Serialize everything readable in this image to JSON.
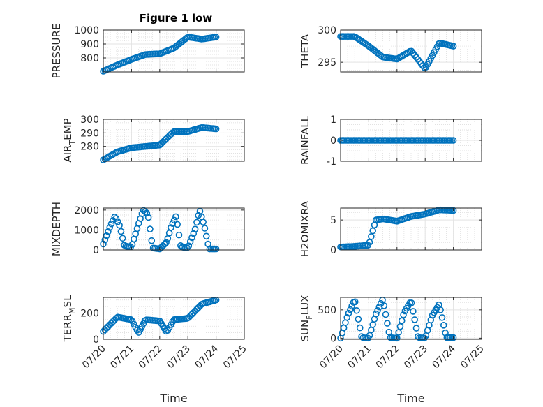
{
  "figure": {
    "title": "Figure 1 low",
    "marker_color": "#0072BD",
    "axis_color": "#262626",
    "grid_color": "#d9d9d9"
  },
  "chart_data": [
    {
      "id": "pressure",
      "type": "scatter",
      "title": "Figure 1 low",
      "ylabel": "PRESSURE",
      "xlabel": "",
      "ylim": [
        700,
        1000
      ],
      "yticks": [
        800,
        900,
        1000
      ],
      "xlim": [
        "07/20",
        "07/25"
      ],
      "grid": true,
      "minor_grid": true,
      "x": [
        "07/20 00:00",
        "07/20 12:00",
        "07/21 00:00",
        "07/21 12:00",
        "07/22 00:00",
        "07/22 12:00",
        "07/23 00:00",
        "07/23 12:00",
        "07/24 00:00"
      ],
      "y": [
        705,
        750,
        790,
        825,
        830,
        870,
        950,
        935,
        950
      ]
    },
    {
      "id": "theta",
      "type": "scatter",
      "title": "",
      "ylabel": "THETA",
      "xlabel": "",
      "ylim": [
        293.5,
        300
      ],
      "yticks": [
        295,
        300
      ],
      "xlim": [
        "07/20",
        "07/25"
      ],
      "grid": true,
      "minor_grid": true,
      "x": [
        "07/20 00:00",
        "07/20 12:00",
        "07/21 00:00",
        "07/21 12:00",
        "07/22 00:00",
        "07/22 12:00",
        "07/23 00:00",
        "07/23 12:00",
        "07/24 00:00"
      ],
      "y": [
        299.0,
        299.0,
        297.5,
        295.8,
        295.5,
        296.8,
        294.0,
        298.0,
        297.5
      ]
    },
    {
      "id": "air_temp",
      "type": "scatter",
      "title": "",
      "ylabel_main": "AIR",
      "ylabel_sub": "T",
      "ylabel_rest": "EMP",
      "xlabel": "",
      "ylim": [
        269,
        300
      ],
      "yticks": [
        280,
        290,
        300
      ],
      "xlim": [
        "07/20",
        "07/25"
      ],
      "grid": true,
      "minor_grid": true,
      "x": [
        "07/20 00:00",
        "07/20 12:00",
        "07/21 00:00",
        "07/21 12:00",
        "07/22 00:00",
        "07/22 12:00",
        "07/23 00:00",
        "07/23 12:00",
        "07/24 00:00"
      ],
      "y": [
        270,
        276,
        279,
        280,
        281,
        291,
        291,
        294,
        293
      ]
    },
    {
      "id": "rainfall",
      "type": "scatter",
      "title": "",
      "ylabel": "RAINFALL",
      "xlabel": "",
      "ylim": [
        -1,
        1
      ],
      "yticks": [
        -1,
        0,
        1
      ],
      "xlim": [
        "07/20",
        "07/25"
      ],
      "grid": true,
      "minor_grid": true,
      "x": [
        "07/20 00:00",
        "07/24 00:00"
      ],
      "y": [
        0,
        0
      ]
    },
    {
      "id": "mixdepth",
      "type": "scatter",
      "title": "",
      "ylabel": "MIXDEPTH",
      "xlabel": "",
      "ylim": [
        0,
        2100
      ],
      "yticks": [
        0,
        1000,
        2000
      ],
      "xlim": [
        "07/20",
        "07/25"
      ],
      "grid": true,
      "minor_grid": true,
      "x": [
        "07/20 00:00",
        "07/20 06:00",
        "07/20 10:00",
        "07/20 14:00",
        "07/20 18:00",
        "07/21 00:00",
        "07/21 06:00",
        "07/21 10:00",
        "07/21 14:00",
        "07/21 18:00",
        "07/22 00:00",
        "07/22 06:00",
        "07/22 10:00",
        "07/22 14:00",
        "07/22 18:00",
        "07/23 00:00",
        "07/23 06:00",
        "07/23 10:00",
        "07/23 14:00",
        "07/23 18:00",
        "07/24 00:00"
      ],
      "y": [
        300,
        1200,
        1700,
        1200,
        200,
        150,
        1300,
        2000,
        1800,
        100,
        50,
        400,
        1200,
        1700,
        150,
        100,
        1000,
        2000,
        1200,
        50,
        50
      ]
    },
    {
      "id": "h2omixra",
      "type": "scatter",
      "title": "",
      "ylabel": "H2OMIXRA",
      "xlabel": "",
      "ylim": [
        0,
        7
      ],
      "yticks": [
        0,
        5
      ],
      "xlim": [
        "07/20",
        "07/25"
      ],
      "grid": true,
      "minor_grid": true,
      "x": [
        "07/20 00:00",
        "07/20 12:00",
        "07/21 00:00",
        "07/21 06:00",
        "07/21 12:00",
        "07/22 00:00",
        "07/22 12:00",
        "07/23 00:00",
        "07/23 12:00",
        "07/24 00:00"
      ],
      "y": [
        0.5,
        0.6,
        0.8,
        5.0,
        5.2,
        4.8,
        5.6,
        6.0,
        6.7,
        6.6
      ]
    },
    {
      "id": "terr_msl",
      "type": "scatter",
      "title": "",
      "ylabel_main": "TERR",
      "ylabel_sub": "M",
      "ylabel_rest": "SL",
      "xlabel": "Time",
      "ylim": [
        0,
        320
      ],
      "yticks": [
        0,
        200
      ],
      "xlim": [
        "07/20",
        "07/25"
      ],
      "xticks": [
        "07/20",
        "07/21",
        "07/22",
        "07/23",
        "07/24",
        "07/25"
      ],
      "grid": true,
      "minor_grid": true,
      "x": [
        "07/20 00:00",
        "07/20 12:00",
        "07/21 00:00",
        "07/21 06:00",
        "07/21 12:00",
        "07/22 00:00",
        "07/22 06:00",
        "07/22 12:00",
        "07/23 00:00",
        "07/23 12:00",
        "07/24 00:00"
      ],
      "y": [
        60,
        170,
        150,
        50,
        150,
        140,
        55,
        150,
        160,
        270,
        300
      ]
    },
    {
      "id": "sun_flux",
      "type": "scatter",
      "title": "",
      "ylabel_main": "SUN",
      "ylabel_sub": "F",
      "ylabel_rest": "LUX",
      "xlabel": "Time",
      "ylim": [
        -20,
        720
      ],
      "yticks": [
        0,
        500
      ],
      "xlim": [
        "07/20",
        "07/25"
      ],
      "xticks": [
        "07/20",
        "07/21",
        "07/22",
        "07/23",
        "07/24",
        "07/25"
      ],
      "grid": true,
      "minor_grid": true,
      "x": [
        "07/20 00:00",
        "07/20 06:00",
        "07/20 12:00",
        "07/20 18:00",
        "07/21 00:00",
        "07/21 06:00",
        "07/21 12:00",
        "07/21 18:00",
        "07/22 00:00",
        "07/22 06:00",
        "07/22 12:00",
        "07/22 18:00",
        "07/23 00:00",
        "07/23 06:00",
        "07/23 12:00",
        "07/23 18:00",
        "07/24 00:00"
      ],
      "y": [
        0,
        400,
        680,
        10,
        0,
        420,
        690,
        10,
        0,
        450,
        660,
        10,
        0,
        400,
        600,
        10,
        10
      ]
    }
  ]
}
